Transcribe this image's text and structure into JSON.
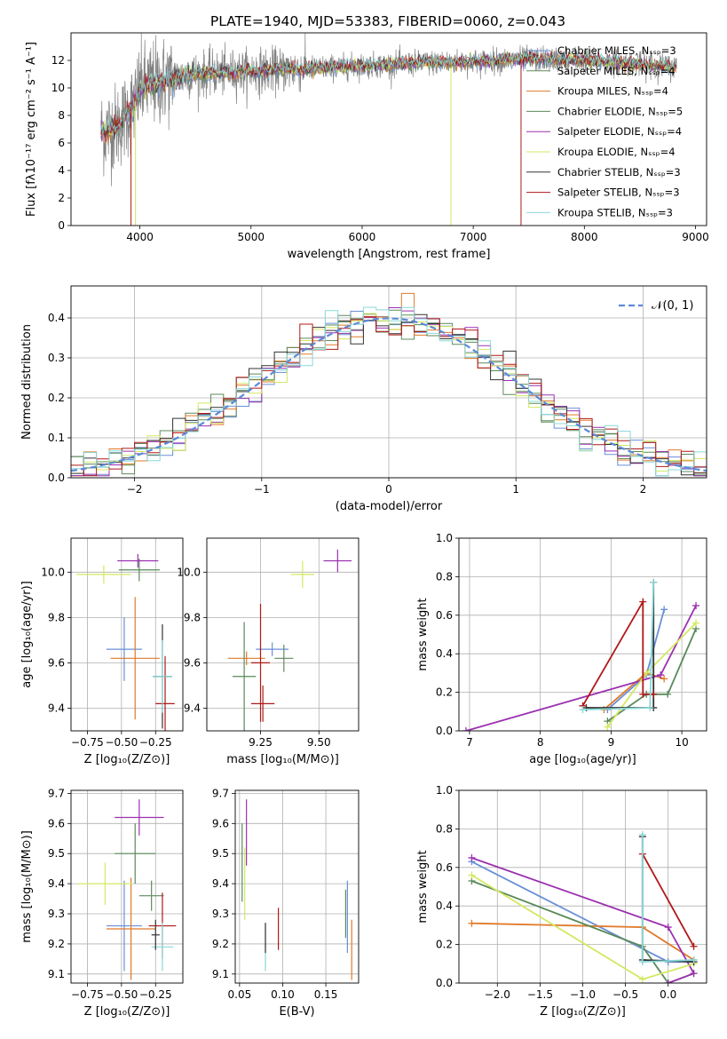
{
  "title": "PLATE=1940, MJD=53383, FIBERID=0060, z=0.043",
  "colors": [
    "#6a8fd8",
    "#5f8a5f",
    "#e07a2a",
    "#5a8a5a",
    "#9b30b0",
    "#d4e860",
    "#333333",
    "#b01818",
    "#88d8d8"
  ],
  "chart_data": [
    {
      "id": "spectrum",
      "type": "line",
      "xlabel": "wavelength [Angstrom, rest frame]",
      "ylabel": "Flux [fλ10⁻¹⁷ erg cm⁻² s⁻¹ A⁻¹]",
      "xlim": [
        3380,
        9100
      ],
      "ylim": [
        0,
        14
      ],
      "xticks": [
        "4000",
        "5000",
        "6000",
        "7000",
        "8000",
        "9000"
      ],
      "yticks": [
        "0",
        "2",
        "4",
        "6",
        "8",
        "10",
        "12"
      ],
      "grid": false,
      "legend_position": "top-right",
      "legend": [
        "Chabrier MILES, Nₛₛₚ=3",
        "Salpeter MILES, Nₛₛₚ=4",
        "Kroupa MILES, Nₛₛₚ=4",
        "Chabrier ELODIE, Nₛₛₚ=5",
        "Salpeter ELODIE, Nₛₛₚ=4",
        "Kroupa ELODIE, Nₛₛₚ=4",
        "Chabrier STELIB, Nₛₛₚ=3",
        "Salpeter STELIB, Nₛₛₚ=3",
        "Kroupa STELIB, Nₛₛₚ=3"
      ],
      "data_wavelength_range": [
        3650,
        8830
      ],
      "continuum": [
        [
          3650,
          6.8
        ],
        [
          3800,
          7.2
        ],
        [
          3950,
          8.8
        ],
        [
          4000,
          10.0
        ],
        [
          4200,
          10.5
        ],
        [
          4500,
          11.0
        ],
        [
          5000,
          11.2
        ],
        [
          5500,
          11.4
        ],
        [
          6000,
          11.6
        ],
        [
          6500,
          11.8
        ],
        [
          7000,
          11.9
        ],
        [
          7500,
          12.1
        ],
        [
          8000,
          12.0
        ],
        [
          8500,
          11.7
        ],
        [
          8830,
          11.5
        ]
      ],
      "dropouts": [
        [
          3920,
          0
        ],
        [
          3960,
          0
        ],
        [
          6800,
          0
        ],
        [
          7430,
          0
        ]
      ]
    },
    {
      "id": "residual_hist",
      "type": "line",
      "xlabel": "(data-model)/error",
      "ylabel": "Normed distribution",
      "xlim": [
        -2.5,
        2.5
      ],
      "ylim": [
        0,
        0.48
      ],
      "xticks": [
        "−2",
        "−1",
        "0",
        "1",
        "2"
      ],
      "yticks": [
        "0.0",
        "0.1",
        "0.2",
        "0.3",
        "0.4"
      ],
      "grid": true,
      "legend_position": "top-right",
      "legend": [
        "𝒩(0, 1)"
      ],
      "bin_width": 0.1
    },
    {
      "id": "age_vs_Z",
      "type": "scatter",
      "xlabel": "Z [log₁₀(Z/Z⊙)]",
      "ylabel": "age  [log₁₀(age/yr)]",
      "xlim": [
        -0.87,
        -0.05
      ],
      "ylim": [
        9.3,
        10.15
      ],
      "xticks": [
        "−0.75",
        "−0.50",
        "−0.25"
      ],
      "yticks": [
        "9.4",
        "9.6",
        "9.8",
        "10.0"
      ],
      "grid": true,
      "points": [
        {
          "x": -0.48,
          "y": 9.66,
          "xerr": 0.13,
          "yerr": 0.14,
          "c": 0
        },
        {
          "x": -0.4,
          "y": 9.62,
          "xerr": 0.18,
          "yerr": 0.27,
          "c": 2
        },
        {
          "x": -0.37,
          "y": 10.01,
          "xerr": 0.15,
          "yerr": 0.05,
          "c": 3
        },
        {
          "x": -0.38,
          "y": 10.05,
          "xerr": 0.15,
          "yerr": 0.03,
          "c": 4
        },
        {
          "x": -0.63,
          "y": 9.99,
          "xerr": 0.2,
          "yerr": 0.04,
          "c": 5
        },
        {
          "x": -0.2,
          "y": 9.54,
          "xerr": 0.07,
          "yerr": 0.23,
          "c": 6
        },
        {
          "x": -0.18,
          "y": 9.42,
          "xerr": 0.07,
          "yerr": 0.21,
          "c": 7
        },
        {
          "x": -0.2,
          "y": 9.54,
          "xerr": 0.07,
          "yerr": 0.16,
          "c": 8
        }
      ]
    },
    {
      "id": "age_vs_mass",
      "type": "scatter",
      "xlabel": "mass [log₁₀(M/M⊙)]",
      "ylabel": "",
      "xlim": [
        9.02,
        9.67
      ],
      "ylim": [
        9.3,
        10.15
      ],
      "xticks": [
        "9.25",
        "9.50"
      ],
      "yticks": [
        "9.4",
        "9.6",
        "9.8",
        "10.0"
      ],
      "grid": true,
      "points": [
        {
          "x": 9.3,
          "y": 9.66,
          "xerr": 0.07,
          "yerr": 0.03,
          "c": 0
        },
        {
          "x": 9.19,
          "y": 9.62,
          "xerr": 0.08,
          "yerr": 0.03,
          "c": 2
        },
        {
          "x": 9.18,
          "y": 9.54,
          "xerr": 0.05,
          "yerr": 0.24,
          "c": 3
        },
        {
          "x": 9.58,
          "y": 10.05,
          "xerr": 0.06,
          "yerr": 0.05,
          "c": 4
        },
        {
          "x": 9.43,
          "y": 9.99,
          "xerr": 0.05,
          "yerr": 0.06,
          "c": 5
        },
        {
          "x": 9.25,
          "y": 9.6,
          "xerr": 0.04,
          "yerr": 0.26,
          "c": 7
        },
        {
          "x": 9.35,
          "y": 9.62,
          "xerr": 0.04,
          "yerr": 0.06,
          "c": 1
        },
        {
          "x": 9.26,
          "y": 9.42,
          "xerr": 0.05,
          "yerr": 0.08,
          "c": 7
        }
      ]
    },
    {
      "id": "massweight_vs_age",
      "type": "line",
      "xlabel": "age  [log₁₀(age/yr)]",
      "ylabel": "mass weight",
      "xlim": [
        6.85,
        10.35
      ],
      "ylim": [
        0,
        1.0
      ],
      "xticks": [
        "7",
        "8",
        "9",
        "10"
      ],
      "yticks": [
        "0.0",
        "0.2",
        "0.4",
        "0.6",
        "0.8",
        "1.0"
      ],
      "grid": true,
      "series": [
        {
          "c": 0,
          "pts": [
            [
              8.95,
              0.11
            ],
            [
              9.5,
              0.29
            ],
            [
              9.75,
              0.63
            ]
          ]
        },
        {
          "c": 2,
          "pts": [
            [
              8.9,
              0.11
            ],
            [
              9.5,
              0.3
            ],
            [
              9.75,
              0.27
            ]
          ]
        },
        {
          "c": 3,
          "pts": [
            [
              8.95,
              0.05
            ],
            [
              9.5,
              0.19
            ],
            [
              9.8,
              0.19
            ],
            [
              10.2,
              0.53
            ]
          ]
        },
        {
          "c": 4,
          "pts": [
            [
              6.95,
              0.0
            ],
            [
              9.7,
              0.29
            ],
            [
              10.2,
              0.65
            ]
          ]
        },
        {
          "c": 5,
          "pts": [
            [
              8.95,
              0.02
            ],
            [
              9.5,
              0.3
            ],
            [
              10.2,
              0.56
            ]
          ]
        },
        {
          "c": 6,
          "pts": [
            [
              8.65,
              0.12
            ],
            [
              9.6,
              0.12
            ],
            [
              9.6,
              0.77
            ]
          ]
        },
        {
          "c": 7,
          "pts": [
            [
              8.6,
              0.13
            ],
            [
              9.45,
              0.67
            ],
            [
              9.45,
              0.19
            ],
            [
              9.6,
              0.19
            ]
          ]
        },
        {
          "c": 8,
          "pts": [
            [
              8.6,
              0.11
            ],
            [
              9.55,
              0.12
            ],
            [
              9.6,
              0.77
            ]
          ]
        }
      ]
    },
    {
      "id": "mass_vs_Z",
      "type": "scatter",
      "xlabel": "Z [log₁₀(Z/Z⊙)]",
      "ylabel": "mass [log₁₀(M/M⊙)]",
      "xlim": [
        -0.87,
        -0.05
      ],
      "ylim": [
        9.07,
        9.71
      ],
      "xticks": [
        "−0.75",
        "−0.50",
        "−0.25"
      ],
      "yticks": [
        "9.1",
        "9.2",
        "9.3",
        "9.4",
        "9.5",
        "9.6",
        "9.7"
      ],
      "grid": true,
      "points": [
        {
          "x": -0.48,
          "y": 9.26,
          "xerr": 0.13,
          "yerr": 0.15,
          "c": 0
        },
        {
          "x": -0.43,
          "y": 9.25,
          "xerr": 0.18,
          "yerr": 0.17,
          "c": 2
        },
        {
          "x": -0.4,
          "y": 9.5,
          "xerr": 0.15,
          "yerr": 0.1,
          "c": 3
        },
        {
          "x": -0.37,
          "y": 9.62,
          "xerr": 0.18,
          "yerr": 0.06,
          "c": 4
        },
        {
          "x": -0.62,
          "y": 9.4,
          "xerr": 0.2,
          "yerr": 0.07,
          "c": 5
        },
        {
          "x": -0.28,
          "y": 9.36,
          "xerr": 0.09,
          "yerr": 0.05,
          "c": 1
        },
        {
          "x": -0.2,
          "y": 9.26,
          "xerr": 0.1,
          "yerr": 0.11,
          "c": 7
        },
        {
          "x": -0.2,
          "y": 9.19,
          "xerr": 0.08,
          "yerr": 0.08,
          "c": 8
        },
        {
          "x": -0.25,
          "y": 9.23,
          "xerr": 0.03,
          "yerr": 0.05,
          "c": 6
        }
      ]
    },
    {
      "id": "mass_vs_ebv",
      "type": "scatter",
      "xlabel": "E(B-V)",
      "ylabel": "",
      "xlim": [
        0.045,
        0.188
      ],
      "ylim": [
        9.07,
        9.71
      ],
      "xticks": [
        "0.05",
        "0.10",
        "0.15"
      ],
      "yticks": [
        "9.1",
        "9.2",
        "9.3",
        "9.4",
        "9.5",
        "9.6",
        "9.7"
      ],
      "grid": true,
      "points": [
        {
          "x": 0.053,
          "y": 9.47,
          "xerr": 0,
          "yerr": 0.13,
          "c": 3
        },
        {
          "x": 0.058,
          "y": 9.57,
          "xerr": 0,
          "yerr": 0.11,
          "c": 4
        },
        {
          "x": 0.056,
          "y": 9.4,
          "xerr": 0,
          "yerr": 0.12,
          "c": 5
        },
        {
          "x": 0.08,
          "y": 9.19,
          "xerr": 0,
          "yerr": 0.08,
          "c": 8
        },
        {
          "x": 0.08,
          "y": 9.22,
          "xerr": 0,
          "yerr": 0.05,
          "c": 6
        },
        {
          "x": 0.095,
          "y": 9.25,
          "xerr": 0,
          "yerr": 0.07,
          "c": 7
        },
        {
          "x": 0.175,
          "y": 9.29,
          "xerr": 0,
          "yerr": 0.12,
          "c": 0
        },
        {
          "x": 0.173,
          "y": 9.3,
          "xerr": 0,
          "yerr": 0.08,
          "c": 1
        },
        {
          "x": 0.18,
          "y": 9.18,
          "xerr": 0,
          "yerr": 0.1,
          "c": 2
        }
      ]
    },
    {
      "id": "massweight_vs_Z",
      "type": "line",
      "xlabel": "Z [log₁₀(Z/Z⊙)]",
      "ylabel": "mass weight",
      "xlim": [
        -2.45,
        0.45
      ],
      "ylim": [
        0,
        1.0
      ],
      "xticks": [
        "−2.0",
        "−1.5",
        "−1.0",
        "−0.5",
        "0.0"
      ],
      "yticks": [
        "0.0",
        "0.2",
        "0.4",
        "0.6",
        "0.8",
        "1.0"
      ],
      "grid": true,
      "series": [
        {
          "c": 0,
          "pts": [
            [
              -2.3,
              0.63
            ],
            [
              0.0,
              0.11
            ],
            [
              0.3,
              0.11
            ]
          ]
        },
        {
          "c": 2,
          "pts": [
            [
              -2.3,
              0.31
            ],
            [
              -0.3,
              0.29
            ],
            [
              0.3,
              0.12
            ]
          ]
        },
        {
          "c": 3,
          "pts": [
            [
              -2.3,
              0.53
            ],
            [
              -0.3,
              0.19
            ],
            [
              0.0,
              0.0
            ],
            [
              0.3,
              0.05
            ]
          ]
        },
        {
          "c": 4,
          "pts": [
            [
              -2.3,
              0.65
            ],
            [
              0.0,
              0.29
            ],
            [
              0.3,
              0.05
            ],
            [
              0.0,
              0.0
            ]
          ]
        },
        {
          "c": 5,
          "pts": [
            [
              -2.3,
              0.56
            ],
            [
              -0.3,
              0.02
            ],
            [
              0.3,
              0.1
            ]
          ]
        },
        {
          "c": 6,
          "pts": [
            [
              -0.3,
              0.76
            ],
            [
              -0.3,
              0.12
            ],
            [
              0.3,
              0.11
            ]
          ]
        },
        {
          "c": 7,
          "pts": [
            [
              -0.3,
              0.67
            ],
            [
              0.3,
              0.19
            ]
          ]
        },
        {
          "c": 8,
          "pts": [
            [
              -0.3,
              0.77
            ],
            [
              -0.3,
              0.11
            ],
            [
              0.3,
              0.12
            ]
          ]
        }
      ]
    }
  ]
}
